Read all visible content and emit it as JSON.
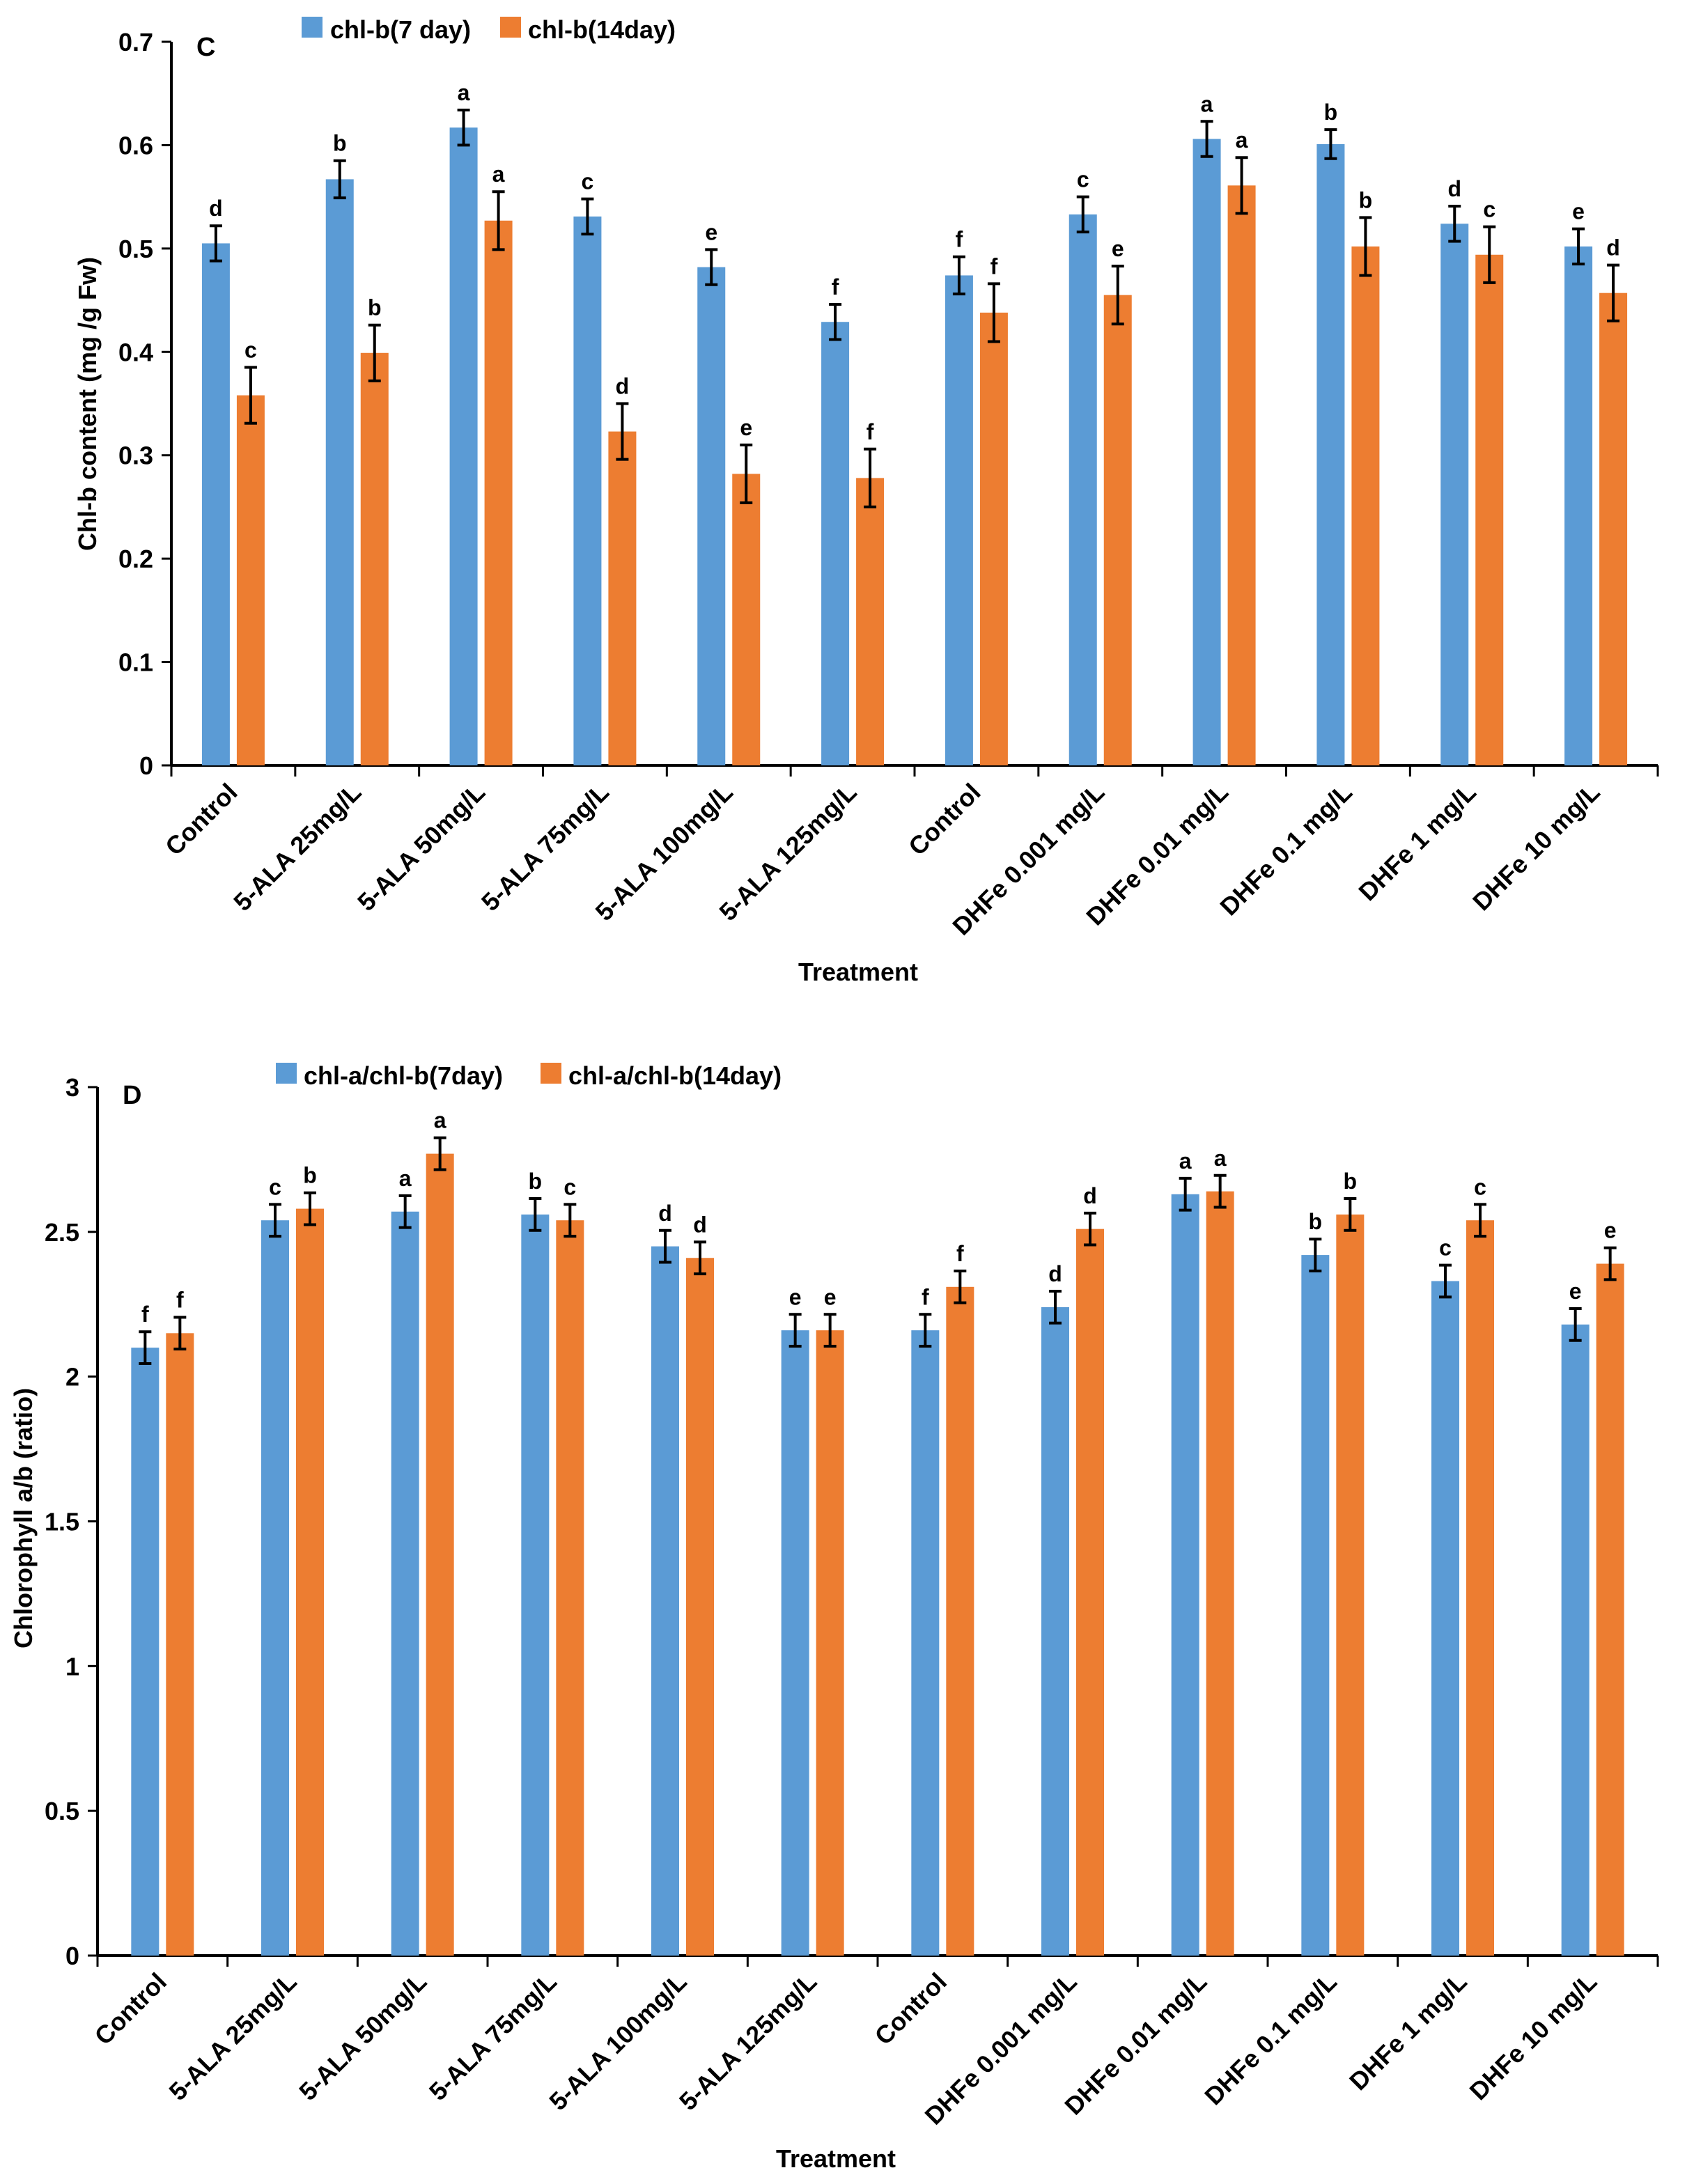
{
  "chart_data": [
    {
      "type": "bar",
      "panel_label": "C",
      "title": "",
      "xlabel": "Treatment",
      "ylabel": "Chl-b content (mg /g Fw)",
      "ylim": [
        0,
        0.7
      ],
      "yticks": [
        0,
        0.1,
        0.2,
        0.3,
        0.4,
        0.5,
        0.6,
        0.7
      ],
      "ytick_labels": [
        "0",
        "0.1",
        "0.2",
        "0.3",
        "0.4",
        "0.5",
        "0.6",
        "0.7"
      ],
      "grid": false,
      "legend_position": "top-left",
      "categories": [
        "Control",
        "5-ALA 25mg/L",
        "5-ALA 50mg/L",
        "5-ALA 75mg/L",
        "5-ALA 100mg/L",
        "5-ALA 125mg/L",
        "Control",
        "DHFe 0.001 mg/L",
        "DHFe 0.01 mg/L",
        "DHFe 0.1 mg/L",
        "DHFe 1 mg/L",
        "DHFe 10 mg/L"
      ],
      "series": [
        {
          "name": "chl-b(7 day)",
          "color": "#5b9bd5",
          "values": [
            0.505,
            0.567,
            0.617,
            0.531,
            0.482,
            0.429,
            0.474,
            0.533,
            0.606,
            0.601,
            0.524,
            0.502
          ],
          "errors": [
            0.017,
            0.018,
            0.017,
            0.017,
            0.017,
            0.017,
            0.018,
            0.017,
            0.017,
            0.014,
            0.017,
            0.017
          ],
          "significance": [
            "d",
            "b",
            "a",
            "c",
            "e",
            "f",
            "f",
            "c",
            "a",
            "b",
            "d",
            "e"
          ]
        },
        {
          "name": "chl-b(14day)",
          "color": "#ed7d31",
          "values": [
            0.358,
            0.399,
            0.527,
            0.323,
            0.282,
            0.278,
            0.438,
            0.455,
            0.561,
            0.502,
            0.494,
            0.457
          ],
          "errors": [
            0.027,
            0.027,
            0.028,
            0.027,
            0.028,
            0.028,
            0.028,
            0.028,
            0.027,
            0.028,
            0.027,
            0.027
          ],
          "significance": [
            "c",
            "b",
            "a",
            "d",
            "e",
            "f",
            "f",
            "e",
            "a",
            "b",
            "c",
            "d"
          ]
        }
      ]
    },
    {
      "type": "bar",
      "panel_label": "D",
      "title": "",
      "xlabel": "Treatment",
      "ylabel": "Chlorophyll a/b (ratio)",
      "ylim": [
        0,
        3
      ],
      "yticks": [
        0,
        0.5,
        1,
        1.5,
        2,
        2.5,
        3
      ],
      "ytick_labels": [
        "0",
        "0.5",
        "1",
        "1.5",
        "2",
        "2.5",
        "3"
      ],
      "grid": false,
      "legend_position": "top-left",
      "categories": [
        "Control",
        "5-ALA 25mg/L",
        "5-ALA 50mg/L",
        "5-ALA 75mg/L",
        "5-ALA 100mg/L",
        "5-ALA 125mg/L",
        "Control",
        "DHFe 0.001 mg/L",
        "DHFe 0.01 mg/L",
        "DHFe 0.1 mg/L",
        "DHFe 1 mg/L",
        "DHFe 10 mg/L"
      ],
      "series": [
        {
          "name": "chl-a/chl-b(7day)",
          "color": "#5b9bd5",
          "values": [
            2.1,
            2.54,
            2.57,
            2.56,
            2.45,
            2.16,
            2.16,
            2.24,
            2.63,
            2.42,
            2.33,
            2.18
          ],
          "errors": [
            0.055,
            0.055,
            0.055,
            0.055,
            0.055,
            0.055,
            0.055,
            0.055,
            0.055,
            0.055,
            0.055,
            0.055
          ],
          "significance": [
            "f",
            "c",
            "a",
            "b",
            "d",
            "e",
            "f",
            "d",
            "a",
            "b",
            "c",
            "e"
          ]
        },
        {
          "name": "chl-a/chl-b(14day)",
          "color": "#ed7d31",
          "values": [
            2.15,
            2.58,
            2.77,
            2.54,
            2.41,
            2.16,
            2.31,
            2.51,
            2.64,
            2.56,
            2.54,
            2.39
          ],
          "errors": [
            0.055,
            0.055,
            0.055,
            0.055,
            0.055,
            0.055,
            0.055,
            0.055,
            0.055,
            0.055,
            0.055,
            0.055
          ],
          "significance": [
            "f",
            "b",
            "a",
            "c",
            "d",
            "e",
            "f",
            "d",
            "a",
            "b",
            "c",
            "e"
          ]
        }
      ]
    }
  ]
}
